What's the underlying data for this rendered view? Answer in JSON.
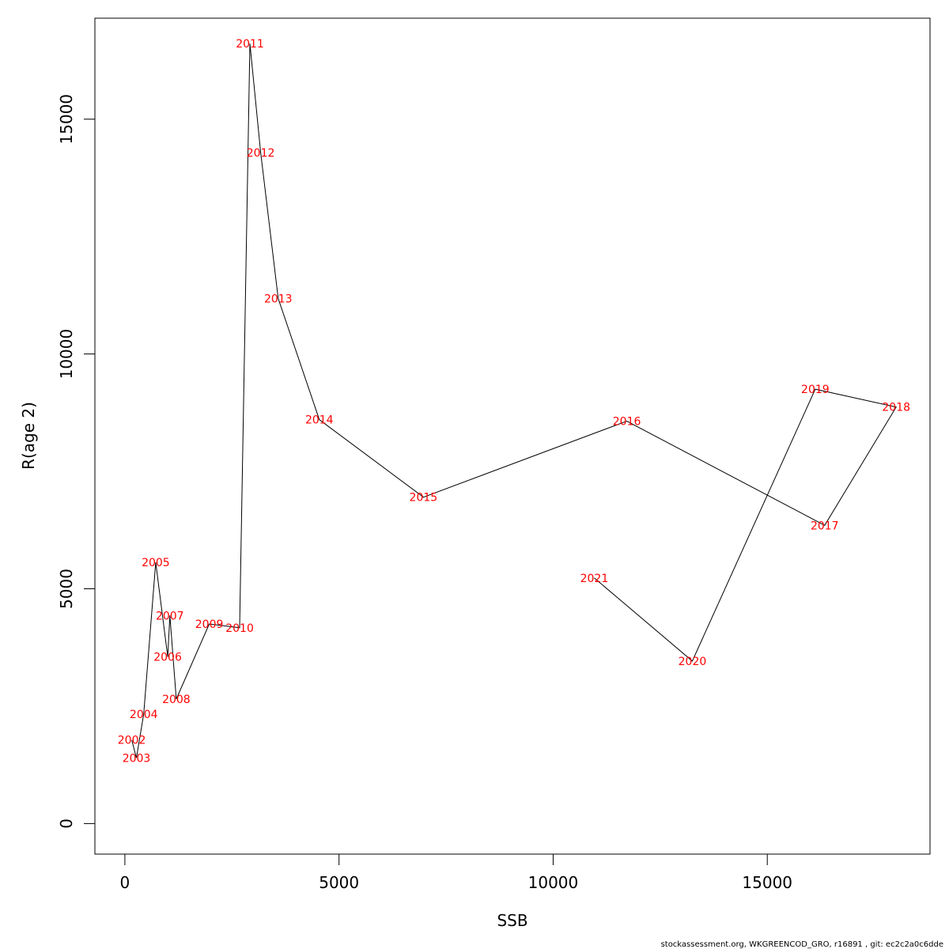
{
  "chart_data": {
    "type": "line",
    "title": "",
    "xlabel": "SSB",
    "ylabel": "R(age 2)",
    "xlim": [
      -700,
      18800
    ],
    "ylim": [
      -650,
      17150
    ],
    "x_ticks": [
      0,
      5000,
      10000,
      15000
    ],
    "y_ticks": [
      0,
      5000,
      10000,
      15000
    ],
    "x_tick_labels": [
      "0",
      "5000",
      "10000",
      "15000"
    ],
    "y_tick_labels": [
      "0",
      "5000",
      "10000",
      "15000"
    ],
    "grid": false,
    "line_color": "#000000",
    "label_color": "#ff0000",
    "points": [
      {
        "year": "2002",
        "ssb": 160,
        "r": 1780
      },
      {
        "year": "2003",
        "ssb": 270,
        "r": 1400
      },
      {
        "year": "2004",
        "ssb": 440,
        "r": 2330
      },
      {
        "year": "2005",
        "ssb": 720,
        "r": 5560
      },
      {
        "year": "2006",
        "ssb": 1000,
        "r": 3550
      },
      {
        "year": "2007",
        "ssb": 1050,
        "r": 4430
      },
      {
        "year": "2008",
        "ssb": 1200,
        "r": 2650
      },
      {
        "year": "2009",
        "ssb": 1970,
        "r": 4250
      },
      {
        "year": "2010",
        "ssb": 2680,
        "r": 4170
      },
      {
        "year": "2011",
        "ssb": 2920,
        "r": 16610
      },
      {
        "year": "2012",
        "ssb": 3170,
        "r": 14290
      },
      {
        "year": "2013",
        "ssb": 3580,
        "r": 11180
      },
      {
        "year": "2014",
        "ssb": 4540,
        "r": 8600
      },
      {
        "year": "2015",
        "ssb": 6970,
        "r": 6950
      },
      {
        "year": "2016",
        "ssb": 11720,
        "r": 8570
      },
      {
        "year": "2017",
        "ssb": 16340,
        "r": 6350
      },
      {
        "year": "2018",
        "ssb": 18010,
        "r": 8870
      },
      {
        "year": "2019",
        "ssb": 16120,
        "r": 9250
      },
      {
        "year": "2020",
        "ssb": 13250,
        "r": 3460
      },
      {
        "year": "2021",
        "ssb": 10960,
        "r": 5230
      }
    ]
  },
  "footer": "stockassessment.org, WKGREENCOD_GRO, r16891 , git: ec2c2a0c6dde"
}
